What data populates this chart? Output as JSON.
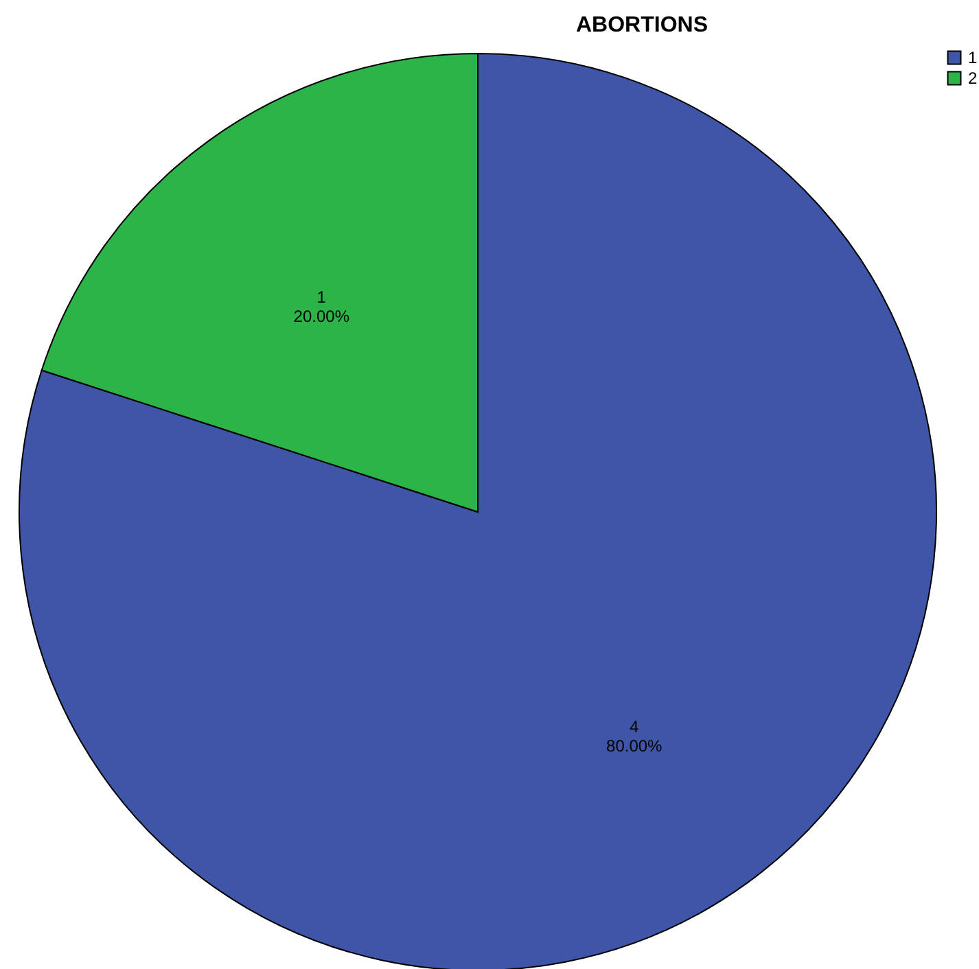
{
  "chart_data": {
    "type": "pie",
    "title": "ABORTIONS",
    "categories": [
      "1",
      "2"
    ],
    "values": [
      4,
      1
    ],
    "colors": [
      "#3f56a8",
      "#2db449"
    ],
    "value_labels": [
      "4\n80.00%",
      "1\n20.00%"
    ],
    "legend": "top right"
  }
}
